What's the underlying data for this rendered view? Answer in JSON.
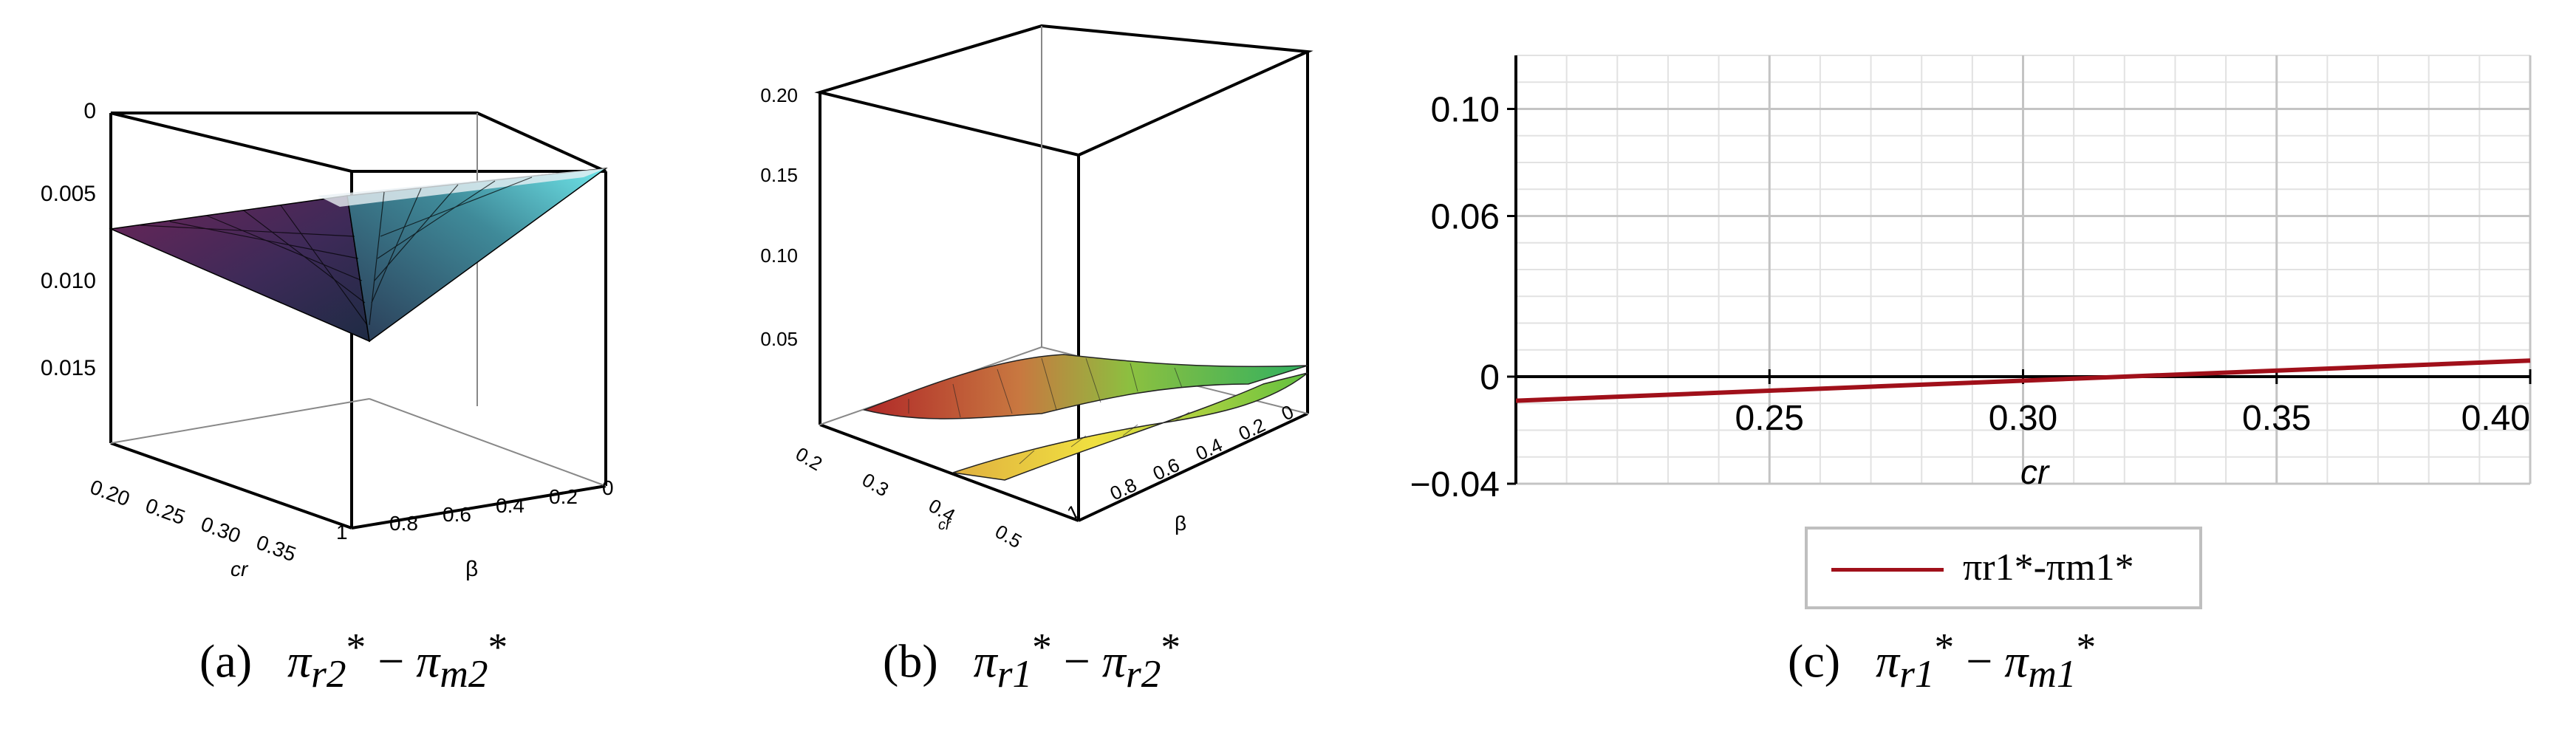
{
  "chart_data": [
    {
      "type": "surface3d",
      "panel": "(a)",
      "caption": {
        "label": "(a)",
        "expr_pre": "π",
        "sub1": "r2",
        "sup": "*",
        "op": " − ",
        "sub2": "m2"
      },
      "z_ticks": [
        "0",
        "0.005",
        "0.010",
        "0.015"
      ],
      "x_axis": {
        "label": "cr",
        "ticks": [
          "0.20",
          "0.25",
          "0.30",
          "0.35"
        ]
      },
      "y_axis": {
        "label": "β",
        "ticks": [
          "1",
          "0.8",
          "0.6",
          "0.4",
          "0.2",
          "0"
        ]
      },
      "colors": [
        "#5a1a4a",
        "#7a2f6a",
        "#2d3550",
        "#3a5a6a",
        "#4fd8d8",
        "#ffffff"
      ]
    },
    {
      "type": "surface3d",
      "panel": "(b)",
      "caption": {
        "label": "(b)",
        "expr_pre": "π",
        "sub1": "r1",
        "sup": "*",
        "op": " − ",
        "sub2": "r2"
      },
      "z_ticks": [
        "0.20",
        "0.15",
        "0.10",
        "0.05"
      ],
      "x_axis": {
        "label": "cr",
        "ticks": [
          "0.2",
          "0.3",
          "0.4",
          "0.5"
        ]
      },
      "y_axis": {
        "label": "β",
        "ticks": [
          "1",
          "0.8",
          "0.6",
          "0.4",
          "0.2",
          "0"
        ]
      },
      "colors": [
        "#c03030",
        "#e8d040",
        "#60c040",
        "#20a060",
        "#404040"
      ]
    },
    {
      "type": "line",
      "panel": "(c)",
      "caption": {
        "label": "(c)",
        "expr_pre": "π",
        "sub1": "r1",
        "sup": "*",
        "op": " − ",
        "sub2": "m1"
      },
      "xlabel": "cr",
      "xlim": [
        0.2,
        0.4
      ],
      "ylim": [
        -0.04,
        0.12
      ],
      "x_ticks": [
        0.25,
        0.3,
        0.35,
        0.4
      ],
      "x_tick_labels": [
        "0.25",
        "0.30",
        "0.35",
        "0.40"
      ],
      "y_ticks": [
        -0.04,
        0,
        0.06,
        0.1
      ],
      "y_tick_labels": [
        "−0.04",
        "0",
        "0.06",
        "0.10"
      ],
      "series": [
        {
          "name": "πr1*-πm1*",
          "color": "#a0101a",
          "x": [
            0.2,
            0.4
          ],
          "y": [
            -0.009,
            0.006
          ]
        }
      ],
      "legend": "bottom-center",
      "grid": true
    }
  ]
}
